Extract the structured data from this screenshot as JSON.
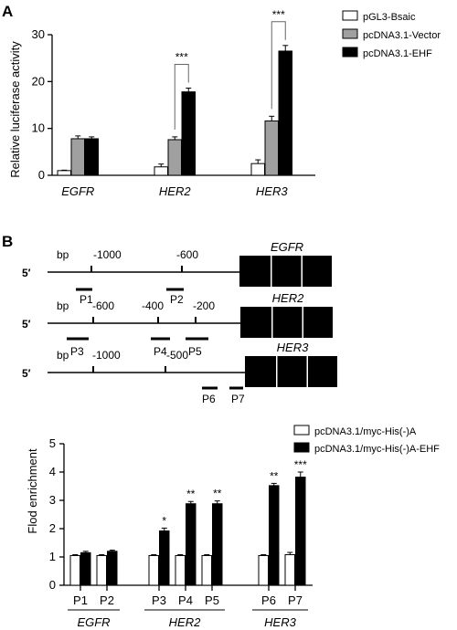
{
  "panels": {
    "a": "A",
    "b": "B"
  },
  "chart_data": [
    {
      "type": "bar",
      "panel": "A",
      "ylabel": "Relative luciferase activity",
      "ylim": [
        0,
        30
      ],
      "yticks": [
        0,
        10,
        20,
        30
      ],
      "categories": [
        "EGFR",
        "HER2",
        "HER3"
      ],
      "series": [
        {
          "name": "pGL3-Bsaic",
          "color": "#ffffff",
          "values": [
            1.0,
            1.8,
            2.5
          ],
          "errors": [
            0.1,
            0.6,
            0.8
          ]
        },
        {
          "name": "pcDNA3.1-Vector",
          "color": "#a0a0a0",
          "values": [
            7.8,
            7.6,
            11.6
          ],
          "errors": [
            0.6,
            0.6,
            1.0
          ]
        },
        {
          "name": "pcDNA3.1-EHF",
          "color": "#000000",
          "values": [
            7.8,
            17.8,
            26.5
          ],
          "errors": [
            0.4,
            0.8,
            1.2
          ]
        }
      ],
      "annotations": [
        {
          "category": "HER2",
          "text": "***"
        },
        {
          "category": "HER3",
          "text": "***"
        }
      ],
      "legend": "top-right"
    },
    {
      "type": "bar",
      "panel": "B",
      "ylabel": "Flod enrichment",
      "ylim": [
        0,
        5
      ],
      "yticks": [
        0,
        1,
        2,
        3,
        4,
        5
      ],
      "categories": [
        "P1",
        "P2",
        "P3",
        "P4",
        "P5",
        "P6",
        "P7"
      ],
      "groups": [
        {
          "name": "EGFR",
          "members": [
            "P1",
            "P2"
          ]
        },
        {
          "name": "HER2",
          "members": [
            "P3",
            "P4",
            "P5"
          ]
        },
        {
          "name": "HER3",
          "members": [
            "P6",
            "P7"
          ]
        }
      ],
      "series": [
        {
          "name": "pcDNA3.1/myc-His(-)A",
          "color": "#ffffff",
          "values": [
            1.05,
            1.05,
            1.05,
            1.05,
            1.05,
            1.05,
            1.08
          ],
          "errors": [
            0.03,
            0.03,
            0.03,
            0.03,
            0.03,
            0.03,
            0.08
          ]
        },
        {
          "name": "pcDNA3.1/myc-His(-)A-EHF",
          "color": "#000000",
          "values": [
            1.15,
            1.2,
            1.92,
            2.88,
            2.88,
            3.52,
            3.82
          ],
          "errors": [
            0.05,
            0.04,
            0.1,
            0.08,
            0.1,
            0.08,
            0.18
          ]
        }
      ],
      "significance": [
        "",
        "",
        "*",
        "**",
        "**",
        "**",
        "***"
      ],
      "legend": "top-right"
    }
  ],
  "diagram": {
    "prime_label": "5′",
    "bp_label": "bp",
    "rows": [
      {
        "gene": "EGFR",
        "ticks": [
          "-1000",
          "-600"
        ],
        "probes": [
          "P1",
          "P2"
        ]
      },
      {
        "gene": "HER2",
        "ticks": [
          "-600",
          "-400",
          "-200"
        ],
        "probes": [
          "P3",
          "P4",
          "P5"
        ]
      },
      {
        "gene": "HER3",
        "ticks": [
          "-1000",
          "-500"
        ],
        "probes": [
          "P6",
          "P7"
        ]
      }
    ]
  }
}
